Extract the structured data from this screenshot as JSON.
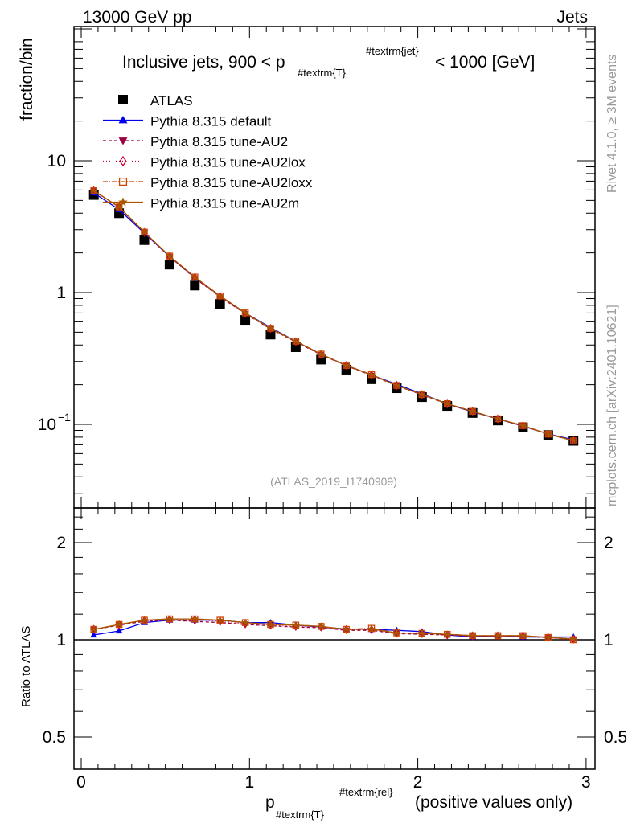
{
  "header": {
    "left": "13000 GeV pp",
    "right": "Jets"
  },
  "side_text": {
    "rivet": "Rivet 4.1.0, ≥ 3M events",
    "mcplots": "mcplots.cern.ch [arXiv:2401.10621]"
  },
  "chart_data": {
    "type": "line",
    "title": {
      "main": "Inclusive jets, 900 < p",
      "sub": "#textrm{T}",
      "sup": "#textrm{jet}",
      "tail": "< 1000 [GeV]"
    },
    "analysis_label": "(ATLAS_2019_I1740909)",
    "xlabel": {
      "main": "p",
      "sub": "#textrm{T}",
      "sup": "#textrm{rel}",
      "tail": "(positive values only)"
    },
    "ylabel": "fraction/bin",
    "ratio_ylabel": "Ratio to ATLAS",
    "xlim": [
      0,
      3
    ],
    "ylim": [
      0.0232,
      104
    ],
    "yscale": "log",
    "ratio_ylim": [
      0.398,
      2.56
    ],
    "x_ticks": [
      "0",
      "1",
      "2",
      "3"
    ],
    "y_ticks": [
      "10^-1",
      "1",
      "10"
    ],
    "ratio_ticks": [
      "0.5",
      "1",
      "2"
    ],
    "legend_position": "top-left",
    "x": [
      0.075,
      0.225,
      0.375,
      0.525,
      0.675,
      0.825,
      0.975,
      1.125,
      1.275,
      1.425,
      1.575,
      1.725,
      1.875,
      2.025,
      2.175,
      2.325,
      2.475,
      2.625,
      2.775,
      2.925
    ],
    "data": {
      "name": "ATLAS",
      "color": "#000000",
      "values": [
        5.5,
        4.0,
        2.5,
        1.63,
        1.13,
        0.82,
        0.62,
        0.48,
        0.385,
        0.31,
        0.26,
        0.22,
        0.188,
        0.161,
        0.138,
        0.122,
        0.107,
        0.095,
        0.083,
        0.075
      ]
    },
    "series": [
      {
        "name": "Pythia 8.315 default",
        "color": "#0000ee",
        "marker": "triangle-up",
        "dash": "",
        "ratio": [
          1.035,
          1.065,
          1.13,
          1.15,
          1.15,
          1.15,
          1.13,
          1.13,
          1.11,
          1.095,
          1.08,
          1.077,
          1.07,
          1.06,
          1.035,
          1.02,
          1.03,
          1.02,
          1.02,
          1.02
        ]
      },
      {
        "name": "Pythia 8.315 tune-AU2",
        "color": "#990044",
        "marker": "triangle-down",
        "dash": "4,3",
        "ratio": [
          1.075,
          1.11,
          1.14,
          1.15,
          1.14,
          1.13,
          1.115,
          1.105,
          1.095,
          1.09,
          1.07,
          1.07,
          1.045,
          1.04,
          1.035,
          1.025,
          1.025,
          1.025,
          1.015,
          1.005
        ]
      },
      {
        "name": "Pythia 8.315 tune-AU2lox",
        "color": "#cc0033",
        "marker": "diamond-open",
        "dash": "1,3",
        "ratio": [
          1.077,
          1.112,
          1.145,
          1.155,
          1.155,
          1.14,
          1.12,
          1.11,
          1.1,
          1.095,
          1.075,
          1.075,
          1.048,
          1.045,
          1.035,
          1.028,
          1.028,
          1.028,
          1.015,
          1.005
        ]
      },
      {
        "name": "Pythia 8.315 tune-AU2loxx",
        "color": "#cc4400",
        "marker": "square-open",
        "dash": "6,2,1,2",
        "ratio": [
          1.077,
          1.115,
          1.15,
          1.16,
          1.16,
          1.15,
          1.13,
          1.115,
          1.11,
          1.1,
          1.077,
          1.085,
          1.05,
          1.047,
          1.04,
          1.03,
          1.03,
          1.03,
          1.017,
          1.0
        ]
      },
      {
        "name": "Pythia 8.315 tune-AU2m",
        "color": "#aa5500",
        "marker": "star",
        "dash": "",
        "ratio": [
          1.077,
          1.115,
          1.15,
          1.16,
          1.16,
          1.15,
          1.13,
          1.115,
          1.11,
          1.1,
          1.077,
          1.08,
          1.05,
          1.047,
          1.04,
          1.03,
          1.03,
          1.03,
          1.017,
          1.005
        ]
      }
    ]
  }
}
